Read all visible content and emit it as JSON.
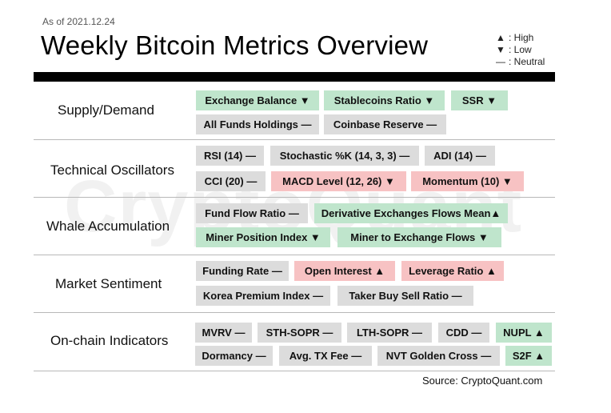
{
  "header": {
    "as_of": "As of 2021.12.24",
    "title": "Weekly Bitcoin Metrics Overview"
  },
  "legend": {
    "high_symbol": "▲",
    "high_label": ": High",
    "low_symbol": "▼",
    "low_label": ": Low",
    "neutral_symbol": "—",
    "neutral_label": ": Neutral"
  },
  "watermark": "CryptoQuant",
  "colors": {
    "low": "#bfe5cc",
    "high": "#f7c2c3",
    "neutral": "#dcdcdc"
  },
  "sections": [
    {
      "label": "Supply/Demand"
    },
    {
      "label": "Technical Oscillators"
    },
    {
      "label": "Whale Accumulation"
    },
    {
      "label": "Market Sentiment"
    },
    {
      "label": "On-chain Indicators"
    }
  ],
  "metrics": [
    {
      "label": "Exchange Balance ▼",
      "status": "low"
    },
    {
      "label": "Stablecoins Ratio ▼",
      "status": "low"
    },
    {
      "label": "SSR ▼",
      "status": "low"
    },
    {
      "label": "All Funds Holdings —",
      "status": "neutral"
    },
    {
      "label": "Coinbase Reserve —",
      "status": "neutral"
    },
    {
      "label": "RSI (14) —",
      "status": "neutral"
    },
    {
      "label": "Stochastic %K (14, 3, 3) —",
      "status": "neutral"
    },
    {
      "label": "ADI (14) —",
      "status": "neutral"
    },
    {
      "label": "CCI (20) —",
      "status": "neutral"
    },
    {
      "label": "MACD Level (12, 26) ▼",
      "status": "high"
    },
    {
      "label": "Momentum (10) ▼",
      "status": "high"
    },
    {
      "label": "Fund Flow Ratio —",
      "status": "neutral"
    },
    {
      "label": "Derivative Exchanges Flows Mean▲",
      "status": "low"
    },
    {
      "label": "Miner Position Index ▼",
      "status": "low"
    },
    {
      "label": "Miner to Exchange Flows ▼",
      "status": "low"
    },
    {
      "label": "Funding Rate —",
      "status": "neutral"
    },
    {
      "label": "Open Interest ▲",
      "status": "high"
    },
    {
      "label": "Leverage Ratio ▲",
      "status": "high"
    },
    {
      "label": "Korea Premium Index —",
      "status": "neutral"
    },
    {
      "label": "Taker Buy Sell Ratio —",
      "status": "neutral"
    },
    {
      "label": "MVRV —",
      "status": "neutral"
    },
    {
      "label": "STH-SOPR —",
      "status": "neutral"
    },
    {
      "label": "LTH-SOPR —",
      "status": "neutral"
    },
    {
      "label": "CDD —",
      "status": "neutral"
    },
    {
      "label": "NUPL ▲",
      "status": "low"
    },
    {
      "label": "Dormancy —",
      "status": "neutral"
    },
    {
      "label": "Avg. TX Fee —",
      "status": "neutral"
    },
    {
      "label": "NVT Golden Cross —",
      "status": "neutral"
    },
    {
      "label": "S2F ▲",
      "status": "low"
    }
  ],
  "source": "Source: CryptoQuant.com"
}
